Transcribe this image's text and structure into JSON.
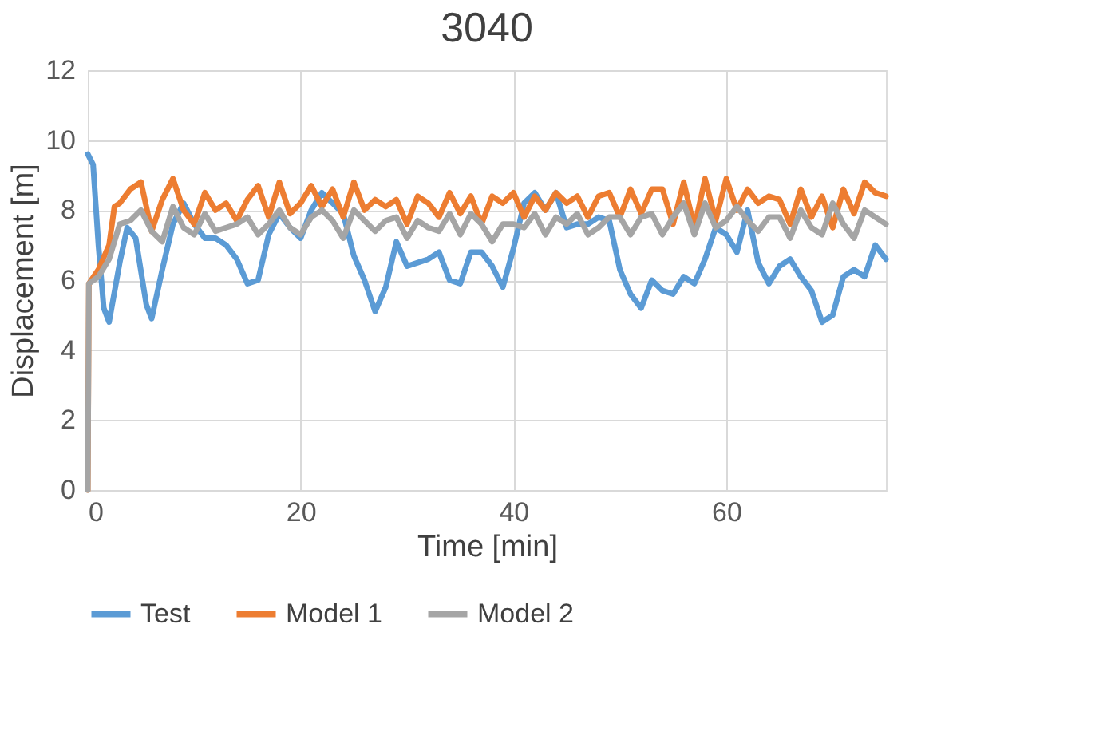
{
  "chart_data": {
    "type": "line",
    "title": "3040",
    "xlabel": "Time [min]",
    "ylabel": "Displacement [m]",
    "xlim": [
      0,
      75
    ],
    "xticks": [
      0,
      20,
      40,
      60
    ],
    "ylim": [
      0,
      12
    ],
    "yticks": [
      0,
      2,
      4,
      6,
      8,
      10,
      12
    ],
    "grid": true,
    "legend": "bottom",
    "line_style": "solid",
    "series": [
      {
        "name": "Test",
        "color": "#5b9bd5",
        "x": [
          0,
          0.5,
          1,
          1.5,
          2,
          3,
          3.7,
          4.5,
          5.5,
          6,
          7,
          8,
          9,
          10,
          11,
          12,
          13,
          14,
          15,
          16,
          17,
          18,
          19,
          20,
          21,
          22,
          23,
          24,
          25,
          26,
          27,
          28,
          29,
          30,
          31,
          32,
          33,
          34,
          35,
          36,
          37,
          38,
          39,
          40,
          41,
          42,
          43,
          44,
          45,
          46,
          47,
          48,
          49,
          50,
          51,
          52,
          53,
          54,
          55,
          56,
          57,
          58,
          59,
          60,
          61,
          62,
          63,
          64,
          65,
          66,
          67,
          68,
          69,
          70,
          71,
          72,
          73,
          74,
          75
        ],
        "values": [
          9.6,
          9.3,
          7,
          5.2,
          4.8,
          6.5,
          7.5,
          7.2,
          5.3,
          4.9,
          6.3,
          7.6,
          8.2,
          7.6,
          7.2,
          7.2,
          7.0,
          6.6,
          5.9,
          6.0,
          7.3,
          7.9,
          7.5,
          7.2,
          8.0,
          8.5,
          8.2,
          7.9,
          6.7,
          6.0,
          5.1,
          5.8,
          7.1,
          6.4,
          6.5,
          6.6,
          6.8,
          6.0,
          5.9,
          6.8,
          6.8,
          6.4,
          5.8,
          6.9,
          8.2,
          8.5,
          8.0,
          8.5,
          7.5,
          7.6,
          7.6,
          7.8,
          7.7,
          6.3,
          5.6,
          5.2,
          6.0,
          5.7,
          5.6,
          6.1,
          5.9,
          6.6,
          7.5,
          7.3,
          6.8,
          8.0,
          6.5,
          5.9,
          6.4,
          6.6,
          6.1,
          5.7,
          4.8,
          5.0,
          6.1,
          6.3,
          6.1,
          7.0,
          6.6
        ]
      },
      {
        "name": "Model 1",
        "color": "#ed7d31",
        "x": [
          0,
          0.1,
          1,
          2,
          2.5,
          3,
          4,
          5,
          6,
          7,
          8,
          9,
          10,
          11,
          12,
          13,
          14,
          15,
          16,
          17,
          18,
          19,
          20,
          21,
          22,
          23,
          24,
          25,
          26,
          27,
          28,
          29,
          30,
          31,
          32,
          33,
          34,
          35,
          36,
          37,
          38,
          39,
          40,
          41,
          42,
          43,
          44,
          45,
          46,
          47,
          48,
          49,
          50,
          51,
          52,
          53,
          54,
          55,
          56,
          57,
          58,
          59,
          60,
          61,
          62,
          63,
          64,
          65,
          66,
          67,
          68,
          69,
          70,
          71,
          72,
          73,
          74,
          75
        ],
        "values": [
          0,
          5.9,
          6.3,
          7.0,
          8.1,
          8.2,
          8.6,
          8.8,
          7.4,
          8.3,
          8.9,
          8.0,
          7.6,
          8.5,
          8.0,
          8.2,
          7.7,
          8.3,
          8.7,
          7.8,
          8.8,
          7.9,
          8.2,
          8.7,
          8.1,
          8.6,
          7.8,
          8.8,
          8.0,
          8.3,
          8.1,
          8.3,
          7.6,
          8.4,
          8.2,
          7.8,
          8.5,
          7.9,
          8.4,
          7.6,
          8.4,
          8.2,
          8.5,
          7.8,
          8.4,
          8.0,
          8.5,
          8.2,
          8.4,
          7.8,
          8.4,
          8.5,
          7.8,
          8.6,
          7.9,
          8.6,
          8.6,
          7.6,
          8.8,
          7.5,
          8.9,
          7.7,
          8.9,
          8.0,
          8.6,
          8.2,
          8.4,
          8.3,
          7.6,
          8.6,
          7.8,
          8.4,
          7.5,
          8.6,
          7.9,
          8.8,
          8.5,
          8.4
        ]
      },
      {
        "name": "Model 2",
        "color": "#a5a5a5",
        "x": [
          0,
          0.1,
          1,
          2,
          3,
          4,
          5,
          6,
          7,
          8,
          9,
          10,
          11,
          12,
          13,
          14,
          15,
          16,
          17,
          18,
          19,
          20,
          21,
          22,
          23,
          24,
          25,
          26,
          27,
          28,
          29,
          30,
          31,
          32,
          33,
          34,
          35,
          36,
          37,
          38,
          39,
          40,
          41,
          42,
          43,
          44,
          45,
          46,
          47,
          48,
          49,
          50,
          51,
          52,
          53,
          54,
          55,
          56,
          57,
          58,
          59,
          60,
          61,
          62,
          63,
          64,
          65,
          66,
          67,
          68,
          69,
          70,
          71,
          72,
          73,
          74,
          75
        ],
        "values": [
          0,
          5.9,
          6.1,
          6.6,
          7.6,
          7.7,
          8.0,
          7.4,
          7.1,
          8.1,
          7.5,
          7.3,
          7.9,
          7.4,
          7.5,
          7.6,
          7.8,
          7.3,
          7.6,
          8.0,
          7.5,
          7.3,
          7.8,
          8.0,
          7.7,
          7.2,
          8.0,
          7.7,
          7.4,
          7.7,
          7.8,
          7.2,
          7.7,
          7.5,
          7.4,
          7.9,
          7.3,
          7.9,
          7.6,
          7.1,
          7.6,
          7.6,
          7.5,
          7.9,
          7.3,
          7.8,
          7.6,
          7.9,
          7.3,
          7.5,
          7.8,
          7.8,
          7.3,
          7.8,
          7.9,
          7.3,
          7.8,
          8.2,
          7.3,
          8.2,
          7.5,
          7.7,
          8.1,
          7.7,
          7.4,
          7.8,
          7.8,
          7.2,
          8.0,
          7.5,
          7.3,
          8.2,
          7.6,
          7.2,
          8.0,
          7.8,
          7.6
        ]
      }
    ]
  }
}
